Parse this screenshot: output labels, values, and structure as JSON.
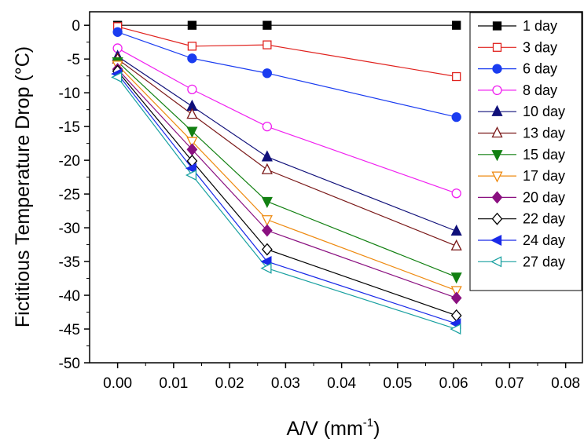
{
  "chart_data": {
    "type": "line",
    "ylabel": "Fictitious Temperature Drop (°C)",
    "xlabel": {
      "main": "A/V (mm",
      "sup": "-1",
      "close": ")"
    },
    "xlim": [
      -0.005,
      0.083
    ],
    "ylim": [
      -50,
      2
    ],
    "x_ticks": [
      0.0,
      0.01,
      0.02,
      0.03,
      0.04,
      0.05,
      0.06,
      0.07,
      0.08
    ],
    "x_tick_labels": [
      "0.00",
      "0.01",
      "0.02",
      "0.03",
      "0.04",
      "0.05",
      "0.06",
      "0.07",
      "0.08"
    ],
    "y_ticks": [
      0,
      -5,
      -10,
      -15,
      -20,
      -25,
      -30,
      -35,
      -40,
      -45,
      -50
    ],
    "y_tick_labels": [
      "0",
      "-5",
      "-10",
      "-15",
      "-20",
      "-25",
      "-30",
      "-35",
      "-40",
      "-45",
      "-50"
    ],
    "grid": false,
    "legend_position": "top-right",
    "x": [
      0.0,
      0.0133,
      0.0267,
      0.0605
    ],
    "series": [
      {
        "name": "1 day",
        "color": "#000000",
        "marker": "square",
        "filled": true,
        "values": [
          0,
          0,
          0,
          0
        ]
      },
      {
        "name": "3 day",
        "color": "#e0221e",
        "marker": "square",
        "filled": false,
        "values": [
          -0.2,
          -3.1,
          -2.9,
          -7.6
        ]
      },
      {
        "name": "6 day",
        "color": "#1a3cf0",
        "marker": "circle",
        "filled": true,
        "values": [
          -1.0,
          -4.9,
          -7.1,
          -13.6
        ]
      },
      {
        "name": "8 day",
        "color": "#f020f0",
        "marker": "circle",
        "filled": false,
        "values": [
          -3.4,
          -9.5,
          -15.0,
          -24.9
        ]
      },
      {
        "name": "10 day",
        "color": "#10107a",
        "marker": "triangle-up",
        "filled": true,
        "values": [
          -4.6,
          -12.0,
          -19.5,
          -30.5
        ]
      },
      {
        "name": "13 day",
        "color": "#7a1818",
        "marker": "triangle-up",
        "filled": false,
        "values": [
          -5.0,
          -13.2,
          -21.4,
          -32.7
        ]
      },
      {
        "name": "15 day",
        "color": "#128012",
        "marker": "triangle-down",
        "filled": true,
        "values": [
          -5.4,
          -15.7,
          -26.1,
          -37.3
        ]
      },
      {
        "name": "17 day",
        "color": "#ee8a10",
        "marker": "triangle-down",
        "filled": false,
        "values": [
          -5.9,
          -17.2,
          -28.8,
          -39.3
        ]
      },
      {
        "name": "20 day",
        "color": "#8a1080",
        "marker": "diamond",
        "filled": true,
        "values": [
          -6.5,
          -18.4,
          -30.4,
          -40.4
        ]
      },
      {
        "name": "22 day",
        "color": "#000000",
        "marker": "diamond",
        "filled": false,
        "values": [
          -6.8,
          -20.1,
          -33.2,
          -43.0
        ]
      },
      {
        "name": "24 day",
        "color": "#1a2ae8",
        "marker": "triangle-left",
        "filled": true,
        "values": [
          -7.2,
          -21.2,
          -35.0,
          -44.2
        ]
      },
      {
        "name": "27 day",
        "color": "#18a0a0",
        "marker": "triangle-left",
        "filled": false,
        "values": [
          -7.7,
          -22.2,
          -36.0,
          -45.0
        ]
      }
    ]
  }
}
